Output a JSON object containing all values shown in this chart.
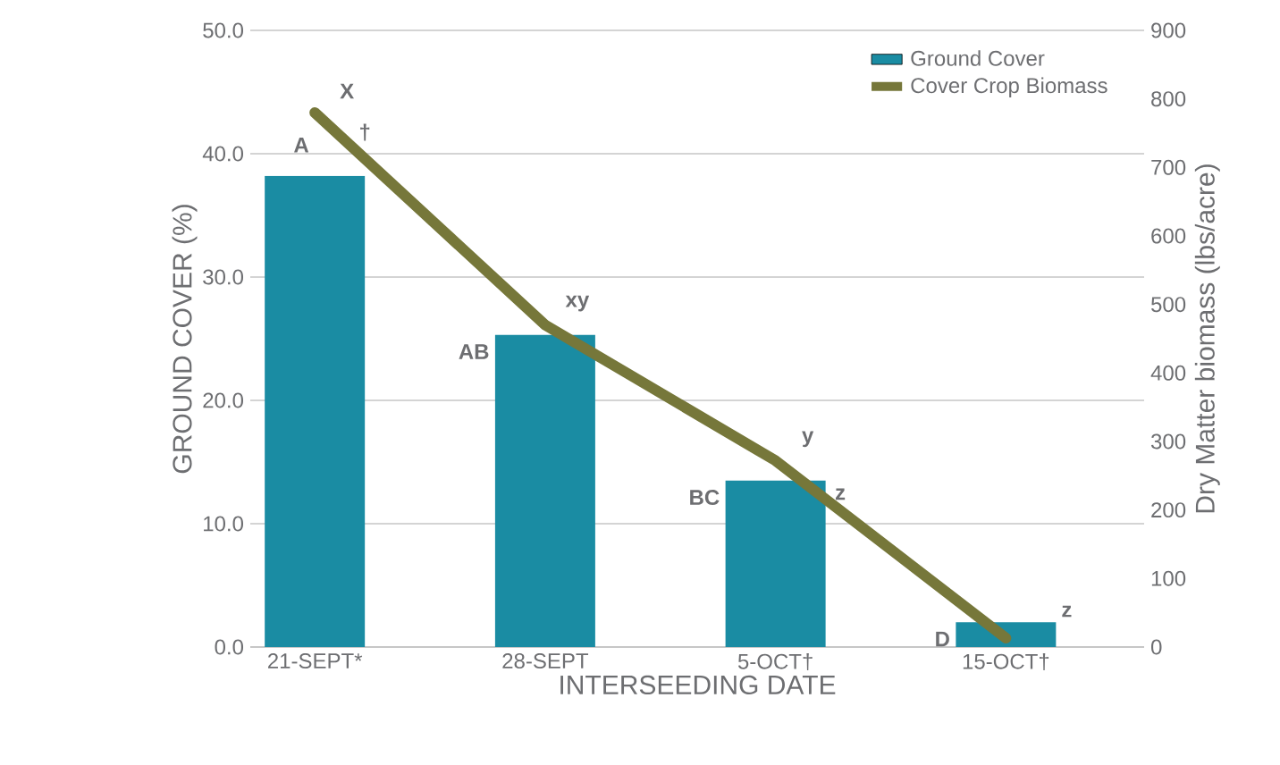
{
  "chart_data": {
    "type": "bar",
    "xlabel": "INTERSEEDING DATE",
    "ylabel": "GROUND COVER (%)",
    "y2label": "Dry Matter biomass (lbs/acre)",
    "categories": [
      "21-SEPT*",
      "28-SEPT",
      "5-OCT†",
      "15-OCT†"
    ],
    "series": [
      {
        "name": "Ground Cover",
        "color": "#1a8ca3",
        "values": [
          38.2,
          25.3,
          13.5,
          2.0
        ]
      },
      {
        "name": "Cover Crop Biomass",
        "type": "line",
        "axis": "y2",
        "color": "#76773a",
        "values": [
          780,
          470,
          272,
          13
        ]
      }
    ],
    "ylim": [
      0,
      50
    ],
    "yticks": [
      {
        "value": 0,
        "label": "0.0"
      },
      {
        "value": 10,
        "label": "10.0"
      },
      {
        "value": 20,
        "label": "20.0"
      },
      {
        "value": 30,
        "label": "30.0"
      },
      {
        "value": 40,
        "label": "40.0"
      },
      {
        "value": 50,
        "label": "50.0"
      }
    ],
    "y2lim": [
      0,
      900
    ],
    "y2ticks": [
      0,
      100,
      200,
      300,
      400,
      500,
      600,
      700,
      800,
      900
    ],
    "grid": "y",
    "legend": "top right",
    "marker": "none",
    "line_style": "solid",
    "annotations": [
      {
        "text": "A",
        "x": "21-SEPT*",
        "y": 38.2
      },
      "X",
      "†",
      {
        "text": "AB",
        "x": "28-SEPT",
        "y": 25.3
      },
      "xy",
      {
        "text": "BC",
        "x": "5-OCT†",
        "y": 13.5
      },
      "y",
      {
        "text": "z",
        "x": "5-OCT†",
        "y": 13.5
      },
      {
        "text": "D",
        "x": "15-OCT†",
        "y": 2.0
      },
      "z"
    ]
  }
}
